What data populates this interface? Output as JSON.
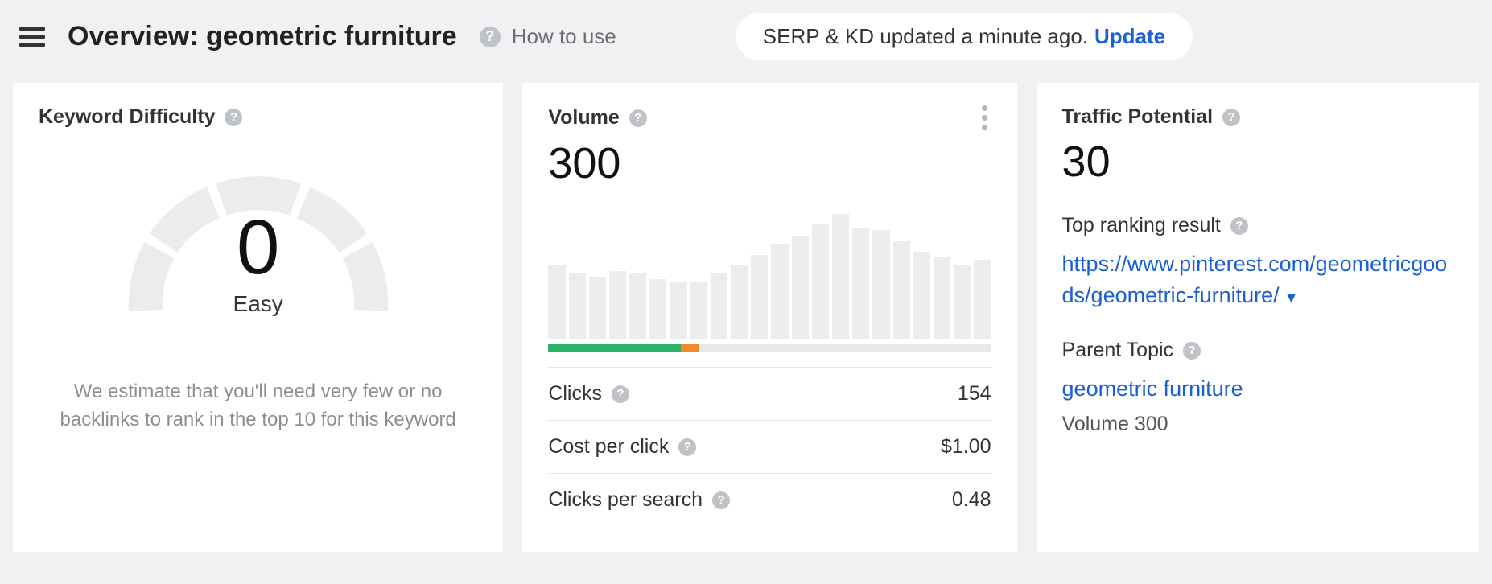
{
  "header": {
    "title_prefix": "Overview: ",
    "title_keyword": "geometric furniture",
    "how_to_use": "How to use",
    "pill_text": "SERP & KD updated a minute ago. ",
    "pill_update": "Update"
  },
  "kd": {
    "title": "Keyword Difficulty",
    "score": "0",
    "rating": "Easy",
    "description": "We estimate that you'll need very few or no backlinks to rank in the top 10 for this keyword",
    "gauge": {
      "segment_color": "#ebeced",
      "segments": 4
    }
  },
  "volume": {
    "title": "Volume",
    "value": "300",
    "chart": {
      "type": "bar",
      "bar_color": "#ebeced",
      "bar_heights_pct": [
        55,
        48,
        46,
        50,
        48,
        44,
        42,
        42,
        48,
        55,
        62,
        70,
        76,
        84,
        92,
        82,
        80,
        72,
        64,
        60,
        55,
        58
      ],
      "background_color": "#ffffff"
    },
    "clickbar": {
      "segments": [
        {
          "color": "#2fb36a",
          "pct": 30
        },
        {
          "color": "#f08a2d",
          "pct": 4
        },
        {
          "color": "#e7e8e9",
          "pct": 66
        }
      ]
    },
    "metrics": [
      {
        "label": "Clicks",
        "value": "154"
      },
      {
        "label": "Cost per click",
        "value": "$1.00"
      },
      {
        "label": "Clicks per search",
        "value": "0.48"
      }
    ]
  },
  "traffic": {
    "title": "Traffic Potential",
    "value": "30",
    "top_ranking_label": "Top ranking result",
    "top_ranking_url": "https://www.pinterest.com/geometricgoods/geometric-furniture/",
    "parent_topic_label": "Parent Topic",
    "parent_topic_value": "geometric furniture",
    "parent_volume_label": "Volume 300"
  },
  "colors": {
    "link": "#1a5fd6",
    "card_bg": "#ffffff",
    "page_bg": "#f0f1f2"
  }
}
